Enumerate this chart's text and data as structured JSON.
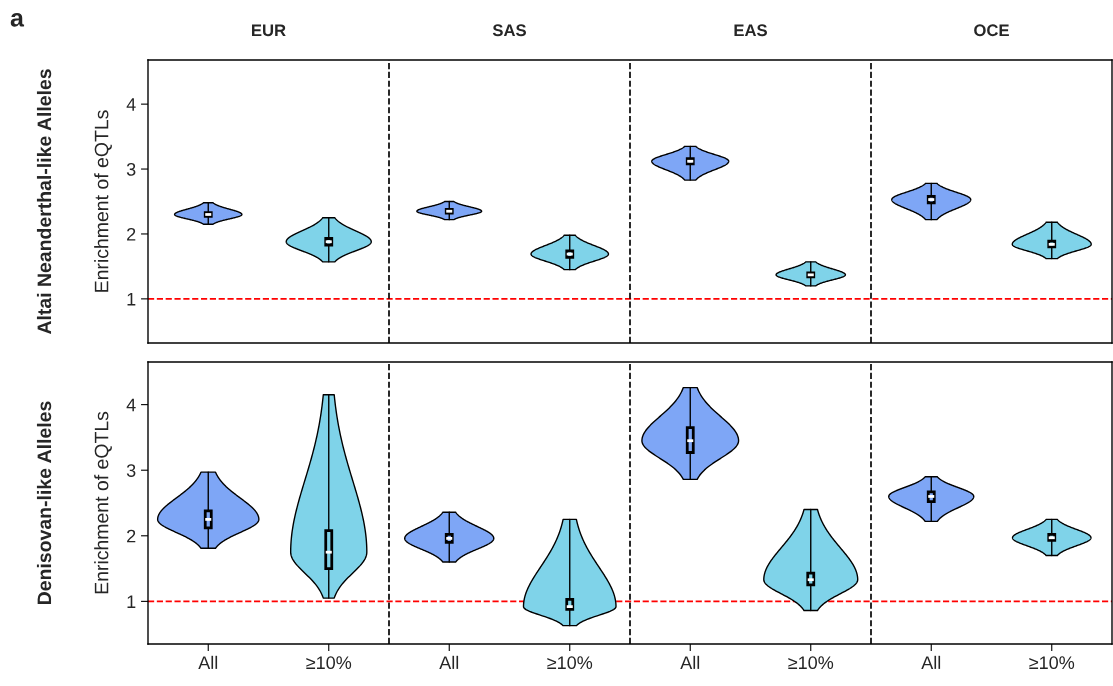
{
  "chart_data": [
    {
      "type": "box",
      "ylabel": "Enrichment of eQTLs",
      "annotations": [
        "a",
        "EUR",
        "SAS",
        "EAS",
        "OCE",
        "Altai Neanderthal-like Alleles"
      ],
      "categories": [
        null,
        null,
        null,
        null,
        null,
        null,
        null,
        null
      ],
      "colors": [
        "#7ea6f6",
        "#7fd3e9",
        "#7ea6f6",
        "#7fd3e9",
        "#7ea6f6",
        "#7fd3e9",
        "#7ea6f6",
        "#7fd3e9"
      ],
      "ylim": [
        0.32,
        4.68
      ],
      "yticks": [
        1,
        2,
        3,
        4
      ],
      "tick_labels": "y",
      "ref_lines": [
        {
          "axis": "y",
          "value": 1,
          "color": "#ff0000",
          "line_style": "dashed"
        }
      ],
      "boxes": [
        {
          "low": 2.15,
          "q1": 2.27,
          "median": 2.3,
          "q3": 2.33,
          "high": 2.48
        },
        {
          "low": 1.57,
          "q1": 1.83,
          "median": 1.88,
          "q3": 1.93,
          "high": 2.25
        },
        {
          "low": 2.22,
          "q1": 2.32,
          "median": 2.35,
          "q3": 2.38,
          "high": 2.5
        },
        {
          "low": 1.45,
          "q1": 1.64,
          "median": 1.69,
          "q3": 1.74,
          "high": 1.98
        },
        {
          "low": 2.83,
          "q1": 3.08,
          "median": 3.12,
          "q3": 3.16,
          "high": 3.35
        },
        {
          "low": 1.2,
          "q1": 1.34,
          "median": 1.37,
          "q3": 1.4,
          "high": 1.57
        },
        {
          "low": 2.22,
          "q1": 2.48,
          "median": 2.53,
          "q3": 2.58,
          "high": 2.78
        },
        {
          "low": 1.62,
          "q1": 1.8,
          "median": 1.84,
          "q3": 1.89,
          "high": 2.18
        }
      ]
    },
    {
      "type": "box",
      "ylabel": "Enrichment of eQTLs",
      "annotations": [
        "Denisovan-like Alleles"
      ],
      "categories": [
        "All",
        "≥10%",
        "All",
        "≥10%",
        "All",
        "≥10%",
        "All",
        "≥10%"
      ],
      "colors": [
        "#7ea6f6",
        "#7fd3e9",
        "#7ea6f6",
        "#7fd3e9",
        "#7ea6f6",
        "#7fd3e9",
        "#7ea6f6",
        "#7fd3e9"
      ],
      "ylim": [
        0.35,
        4.65
      ],
      "yticks": [
        1,
        2,
        3,
        4
      ],
      "ref_lines": [
        {
          "axis": "y",
          "value": 1,
          "color": "#ff0000",
          "line_style": "dashed"
        }
      ],
      "boxes": [
        {
          "low": 1.81,
          "q1": 2.12,
          "median": 2.25,
          "q3": 2.38,
          "high": 2.97
        },
        {
          "low": 1.05,
          "q1": 1.5,
          "median": 1.75,
          "q3": 2.08,
          "high": 4.15
        },
        {
          "low": 1.6,
          "q1": 1.9,
          "median": 1.96,
          "q3": 2.02,
          "high": 2.36
        },
        {
          "low": 0.63,
          "q1": 0.88,
          "median": 0.92,
          "q3": 1.03,
          "high": 2.25
        },
        {
          "low": 2.86,
          "q1": 3.27,
          "median": 3.45,
          "q3": 3.65,
          "high": 4.26
        },
        {
          "low": 0.86,
          "q1": 1.25,
          "median": 1.33,
          "q3": 1.43,
          "high": 2.4
        },
        {
          "low": 2.22,
          "q1": 2.52,
          "median": 2.6,
          "q3": 2.67,
          "high": 2.9
        },
        {
          "low": 1.7,
          "q1": 1.93,
          "median": 1.97,
          "q3": 2.02,
          "high": 2.25
        }
      ]
    }
  ]
}
